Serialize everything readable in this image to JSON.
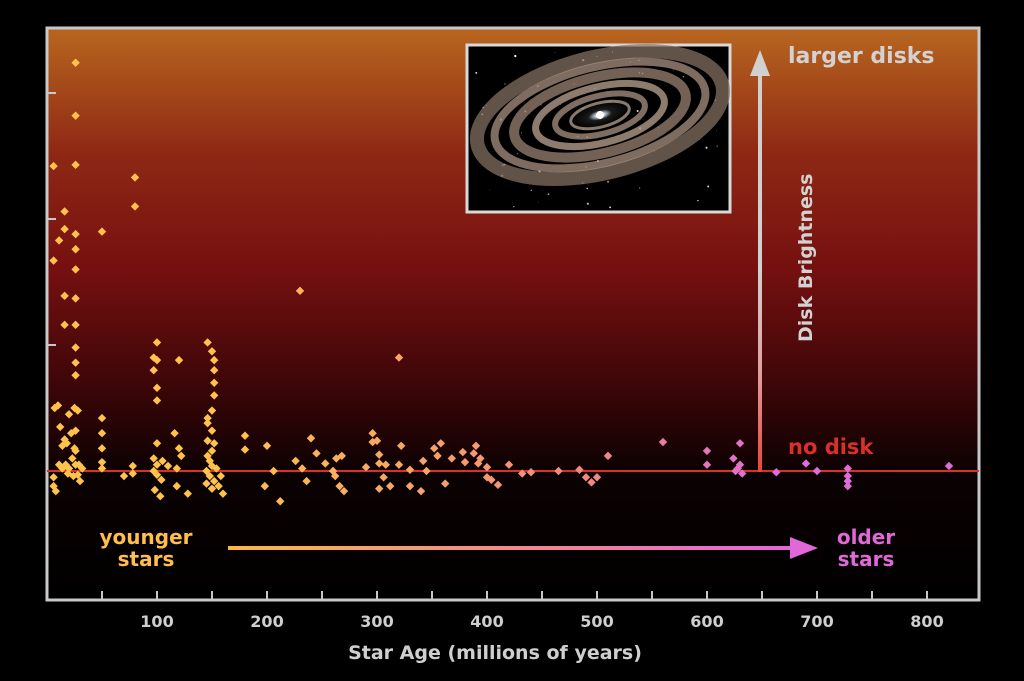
{
  "chart_data": {
    "type": "scatter",
    "title": "",
    "xlabel": "Star Age (millions of years)",
    "ylabel": "Disk Brightness",
    "xlim": [
      0,
      850
    ],
    "ylim": [
      -1.0,
      3.45
    ],
    "x_ticks": [
      100,
      200,
      300,
      400,
      500,
      600,
      700,
      800
    ],
    "x_minor_ticks": [
      50,
      150,
      250,
      350,
      450,
      550,
      650,
      750
    ],
    "y_ticks": [
      1,
      2,
      3
    ],
    "baseline_label": "no disk",
    "top_label": "larger disks",
    "younger_label": [
      "younger",
      "stars"
    ],
    "older_label": [
      "older",
      "stars"
    ],
    "colors": {
      "young": "#ffc24a",
      "old": "#e06cd8",
      "baseline": "#d9302a",
      "frame": "#c8c8c8",
      "bg_top": "#b5621e",
      "bg_mid": "#7a1212",
      "bg_bottom": "#000000",
      "axis_text": "#cfcfcf"
    },
    "inset_image": "debris-disk-illustration",
    "points": [
      [
        26,
        3.24
      ],
      [
        26,
        2.82
      ],
      [
        26,
        2.43
      ],
      [
        26,
        1.88
      ],
      [
        26,
        1.76
      ],
      [
        26,
        1.6
      ],
      [
        26,
        1.37
      ],
      [
        26,
        1.16
      ],
      [
        26,
        0.98
      ],
      [
        26,
        0.86
      ],
      [
        26,
        0.76
      ],
      [
        6,
        2.42
      ],
      [
        6,
        1.67
      ],
      [
        16,
        2.06
      ],
      [
        16,
        1.92
      ],
      [
        16,
        1.16
      ],
      [
        16,
        1.39
      ],
      [
        11,
        1.83
      ],
      [
        50,
        1.9
      ],
      [
        80,
        2.33
      ],
      [
        80,
        2.1
      ],
      [
        230,
        1.43
      ],
      [
        320,
        0.9
      ],
      [
        10,
        0.52
      ],
      [
        12,
        0.35
      ],
      [
        7,
        0.5
      ],
      [
        20,
        0.45
      ],
      [
        22,
        0.3
      ],
      [
        25,
        0.5
      ],
      [
        28,
        0.48
      ],
      [
        26,
        0.32
      ],
      [
        18,
        0.22
      ],
      [
        14,
        0.2
      ],
      [
        25,
        0.18
      ],
      [
        23,
        0.1
      ],
      [
        20,
        0.02
      ],
      [
        17,
        0.05
      ],
      [
        26,
        0.05
      ],
      [
        29,
        0.05
      ],
      [
        32,
        0.02
      ],
      [
        11,
        0.05
      ],
      [
        14,
        0.02
      ],
      [
        19,
        -0.02
      ],
      [
        24,
        -0.04
      ],
      [
        28,
        -0.03
      ],
      [
        6,
        -0.05
      ],
      [
        6,
        -0.12
      ],
      [
        8,
        -0.16
      ],
      [
        16,
        0.25
      ],
      [
        26,
        0.16
      ],
      [
        30,
        -0.08
      ],
      [
        50,
        0.42
      ],
      [
        50,
        0.3
      ],
      [
        50,
        0.18
      ],
      [
        50,
        0.07
      ],
      [
        50,
        0.02
      ],
      [
        70,
        -0.04
      ],
      [
        78,
        0.04
      ],
      [
        78,
        -0.02
      ],
      [
        100,
        1.02
      ],
      [
        97,
        0.9
      ],
      [
        100,
        0.88
      ],
      [
        97,
        0.8
      ],
      [
        100,
        0.66
      ],
      [
        100,
        0.56
      ],
      [
        100,
        0.22
      ],
      [
        97,
        0.1
      ],
      [
        105,
        0.08
      ],
      [
        100,
        0.05
      ],
      [
        97,
        0.0
      ],
      [
        100,
        -0.03
      ],
      [
        104,
        -0.07
      ],
      [
        98,
        -0.15
      ],
      [
        103,
        -0.2
      ],
      [
        120,
        0.88
      ],
      [
        116,
        0.3
      ],
      [
        120,
        0.18
      ],
      [
        122,
        0.12
      ],
      [
        110,
        0.04
      ],
      [
        118,
        0.02
      ],
      [
        118,
        -0.12
      ],
      [
        128,
        -0.18
      ],
      [
        146,
        1.02
      ],
      [
        150,
        0.95
      ],
      [
        152,
        0.88
      ],
      [
        152,
        0.8
      ],
      [
        152,
        0.7
      ],
      [
        152,
        0.6
      ],
      [
        150,
        0.48
      ],
      [
        146,
        0.42
      ],
      [
        146,
        0.38
      ],
      [
        150,
        0.32
      ],
      [
        152,
        0.22
      ],
      [
        146,
        0.12
      ],
      [
        148,
        0.08
      ],
      [
        150,
        0.04
      ],
      [
        154,
        0.02
      ],
      [
        145,
        0.0
      ],
      [
        148,
        -0.04
      ],
      [
        152,
        -0.08
      ],
      [
        145,
        -0.1
      ],
      [
        150,
        -0.14
      ],
      [
        156,
        -0.12
      ],
      [
        158,
        -0.04
      ],
      [
        150,
        0.16
      ],
      [
        146,
        0.24
      ],
      [
        160,
        -0.18
      ],
      [
        180,
        0.28
      ],
      [
        180,
        0.17
      ],
      [
        200,
        0.2
      ],
      [
        198,
        -0.12
      ],
      [
        212,
        -0.24
      ],
      [
        206,
        0.0
      ],
      [
        226,
        0.08
      ],
      [
        232,
        0.02
      ],
      [
        236,
        -0.08
      ],
      [
        240,
        0.26
      ],
      [
        245,
        0.14
      ],
      [
        253,
        0.06
      ],
      [
        260,
        0.0
      ],
      [
        263,
        0.1
      ],
      [
        268,
        0.12
      ],
      [
        262,
        -0.04
      ],
      [
        266,
        -0.12
      ],
      [
        270,
        -0.16
      ],
      [
        290,
        0.03
      ],
      [
        302,
        0.13
      ],
      [
        300,
        0.24
      ],
      [
        302,
        0.06
      ],
      [
        308,
        0.05
      ],
      [
        306,
        -0.05
      ],
      [
        302,
        -0.14
      ],
      [
        312,
        -0.12
      ],
      [
        296,
        0.23
      ],
      [
        296,
        0.3
      ],
      [
        322,
        0.2
      ],
      [
        320,
        0.05
      ],
      [
        330,
        0.01
      ],
      [
        342,
        0.08
      ],
      [
        345,
        0.0
      ],
      [
        352,
        0.18
      ],
      [
        355,
        0.12
      ],
      [
        358,
        0.22
      ],
      [
        362,
        -0.1
      ],
      [
        340,
        -0.16
      ],
      [
        330,
        -0.12
      ],
      [
        368,
        0.1
      ],
      [
        380,
        0.07
      ],
      [
        378,
        0.15
      ],
      [
        388,
        0.14
      ],
      [
        390,
        0.2
      ],
      [
        392,
        0.06
      ],
      [
        394,
        0.1
      ],
      [
        400,
        0.03
      ],
      [
        400,
        -0.05
      ],
      [
        404,
        -0.07
      ],
      [
        410,
        -0.11
      ],
      [
        420,
        0.05
      ],
      [
        432,
        -0.02
      ],
      [
        440,
        -0.01
      ],
      [
        465,
        0.0
      ],
      [
        484,
        0.01
      ],
      [
        490,
        -0.05
      ],
      [
        495,
        -0.09
      ],
      [
        500,
        -0.05
      ],
      [
        510,
        0.12
      ],
      [
        560,
        0.23
      ],
      [
        600,
        0.05
      ],
      [
        600,
        0.16
      ],
      [
        624,
        0.1
      ],
      [
        626,
        0.0
      ],
      [
        628,
        0.02
      ],
      [
        630,
        0.05
      ],
      [
        632,
        -0.02
      ],
      [
        630,
        0.22
      ],
      [
        663,
        -0.01
      ],
      [
        690,
        0.06
      ],
      [
        700,
        0.0
      ],
      [
        728,
        0.02
      ],
      [
        728,
        -0.04
      ],
      [
        728,
        -0.08
      ],
      [
        728,
        -0.12
      ],
      [
        820,
        0.04
      ]
    ]
  }
}
